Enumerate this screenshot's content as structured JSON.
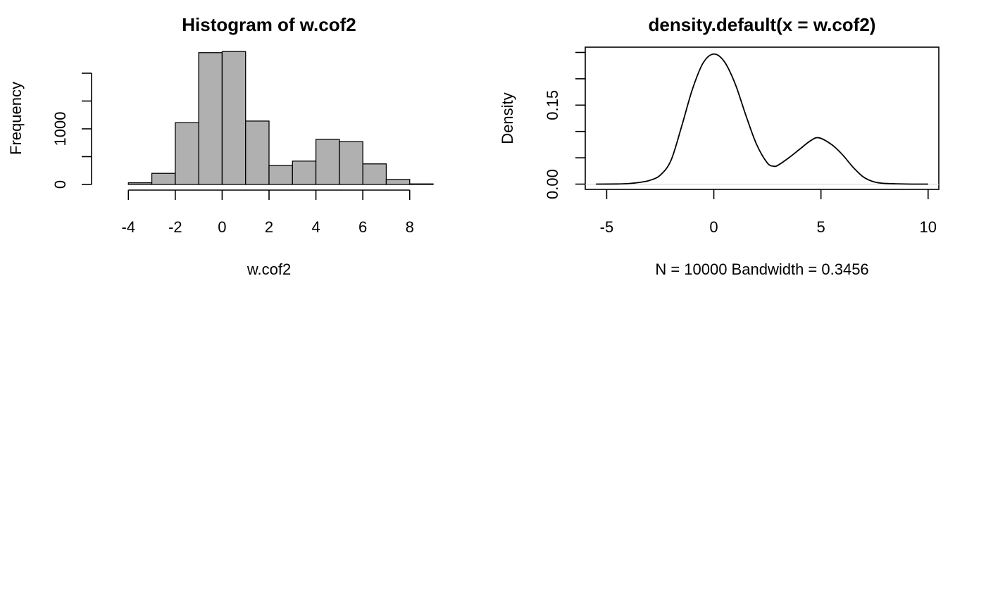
{
  "chart_data": [
    {
      "type": "bar",
      "title": "Histogram of w.cof2",
      "xlabel": "w.cof2",
      "ylabel": "Frequency",
      "bin_edges": [
        -5,
        -4,
        -3,
        -2,
        -1,
        0,
        1,
        2,
        3,
        4,
        5,
        6,
        7,
        8,
        9
      ],
      "values": [
        0,
        30,
        200,
        1110,
        2370,
        2390,
        1140,
        340,
        420,
        810,
        770,
        370,
        90,
        10
      ],
      "xlim": [
        -5,
        9
      ],
      "ylim": [
        0,
        2400
      ],
      "x_ticks": [
        -4,
        -2,
        0,
        2,
        4,
        6,
        8
      ],
      "x_tick_labels": [
        "-4",
        "-2",
        "0",
        "2",
        "4",
        "6",
        "8"
      ],
      "y_ticks": [
        0,
        500,
        1000,
        1500,
        2000
      ],
      "y_tick_labels": [
        "0",
        "",
        "1000",
        "",
        ""
      ],
      "bar_color": "#b0b0b0",
      "grid": false
    },
    {
      "type": "line",
      "title": "density.default(x = w.cof2)",
      "xlabel": "N = 10000   Bandwidth = 0.3456",
      "ylabel": "Density",
      "x": [
        -5.5,
        -4.5,
        -4,
        -3.5,
        -3,
        -2.5,
        -2,
        -1.5,
        -1,
        -0.5,
        0,
        0.5,
        1,
        1.5,
        2,
        2.5,
        2.8,
        3,
        3.5,
        4,
        4.5,
        4.9,
        5.5,
        6,
        6.5,
        7,
        7.5,
        8,
        9,
        10
      ],
      "y": [
        0,
        0.0003,
        0.001,
        0.003,
        0.007,
        0.017,
        0.045,
        0.11,
        0.18,
        0.23,
        0.247,
        0.232,
        0.19,
        0.13,
        0.075,
        0.04,
        0.034,
        0.036,
        0.05,
        0.066,
        0.082,
        0.088,
        0.075,
        0.056,
        0.032,
        0.013,
        0.004,
        0.0013,
        0.0002,
        0
      ],
      "xlim": [
        -6,
        10.5
      ],
      "ylim": [
        -0.01,
        0.26
      ],
      "x_ticks": [
        -5,
        0,
        5,
        10
      ],
      "x_tick_labels": [
        "-5",
        "0",
        "5",
        "10"
      ],
      "y_ticks": [
        0,
        0.05,
        0.1,
        0.15,
        0.2,
        0.25
      ],
      "y_tick_labels": [
        "0.00",
        "",
        "",
        "0.15",
        "",
        ""
      ],
      "baseline": 0,
      "baseline_color": "#d3d3d3",
      "grid": false
    }
  ]
}
